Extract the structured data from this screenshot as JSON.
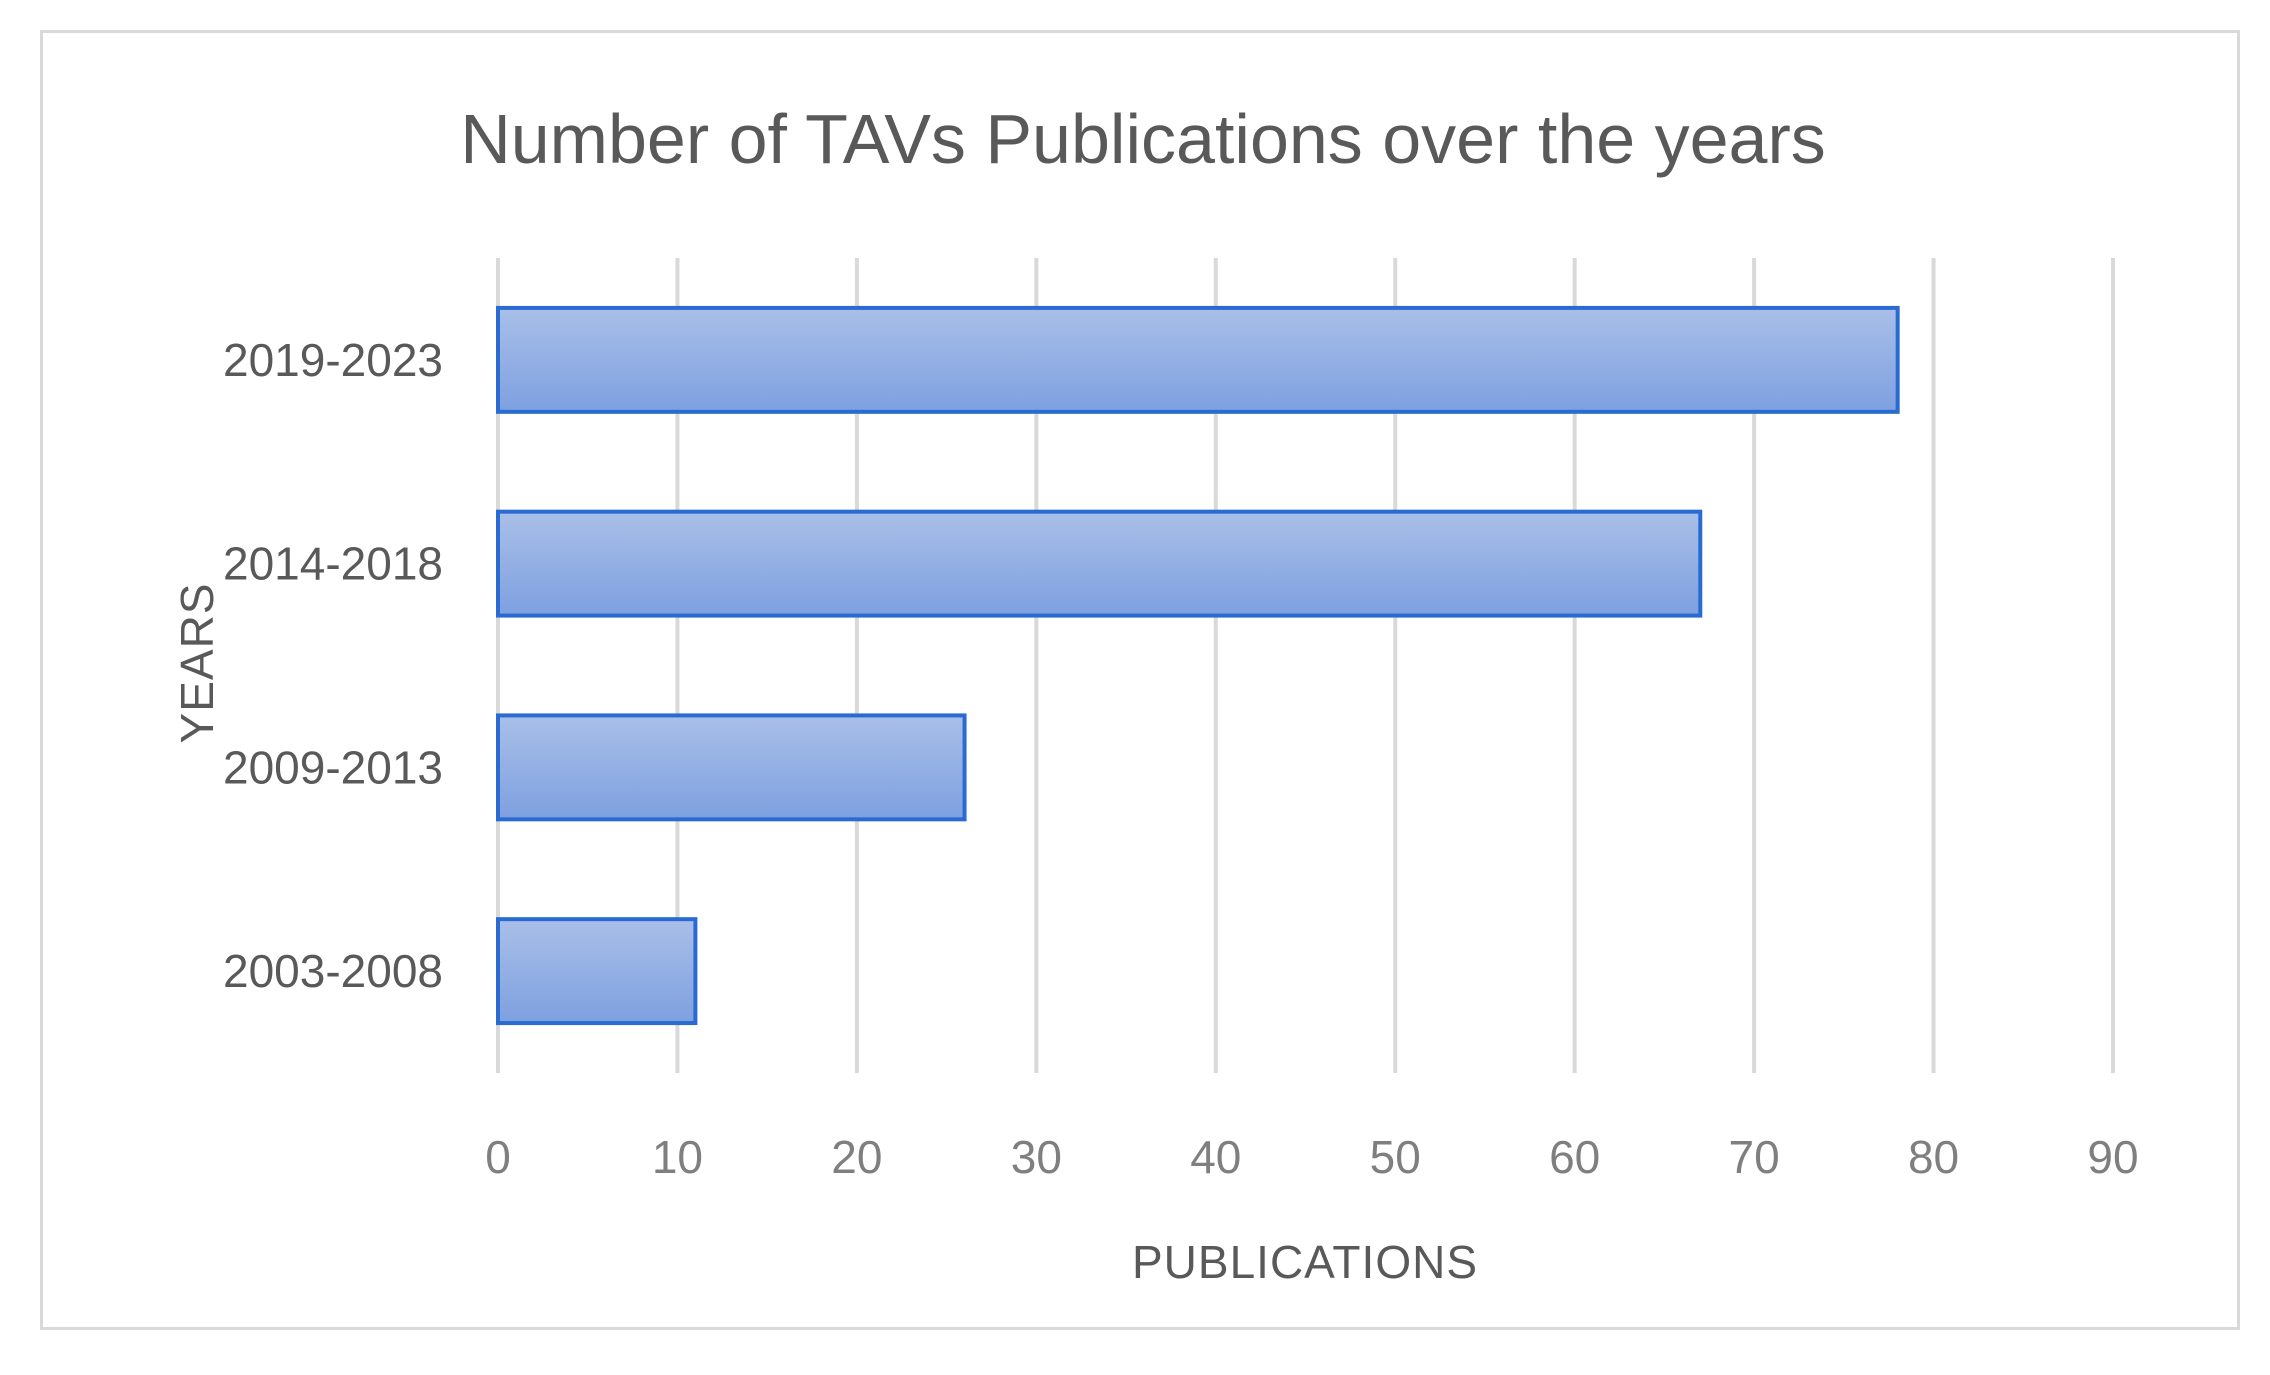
{
  "chart_data": {
    "type": "bar",
    "orientation": "horizontal",
    "title": "Number of TAVs Publications over the years",
    "xlabel": "PUBLICATIONS",
    "ylabel": "YEARS",
    "categories": [
      "2003-2008",
      "2009-2013",
      "2014-2018",
      "2019-2023"
    ],
    "values": [
      11,
      26,
      67,
      78
    ],
    "xlim": [
      0,
      90
    ],
    "xticks": [
      "0",
      "10",
      "20",
      "30",
      "40",
      "50",
      "60",
      "70",
      "80",
      "90"
    ],
    "grid": "vertical",
    "legend": "none",
    "colors": {
      "bar_top": "#a9bfe8",
      "bar_bottom": "#7ea0e0",
      "bar_border": "#2a6bd1",
      "grid": "#d9d9d9",
      "text": "#595959",
      "tick": "#7f7f7f"
    }
  }
}
